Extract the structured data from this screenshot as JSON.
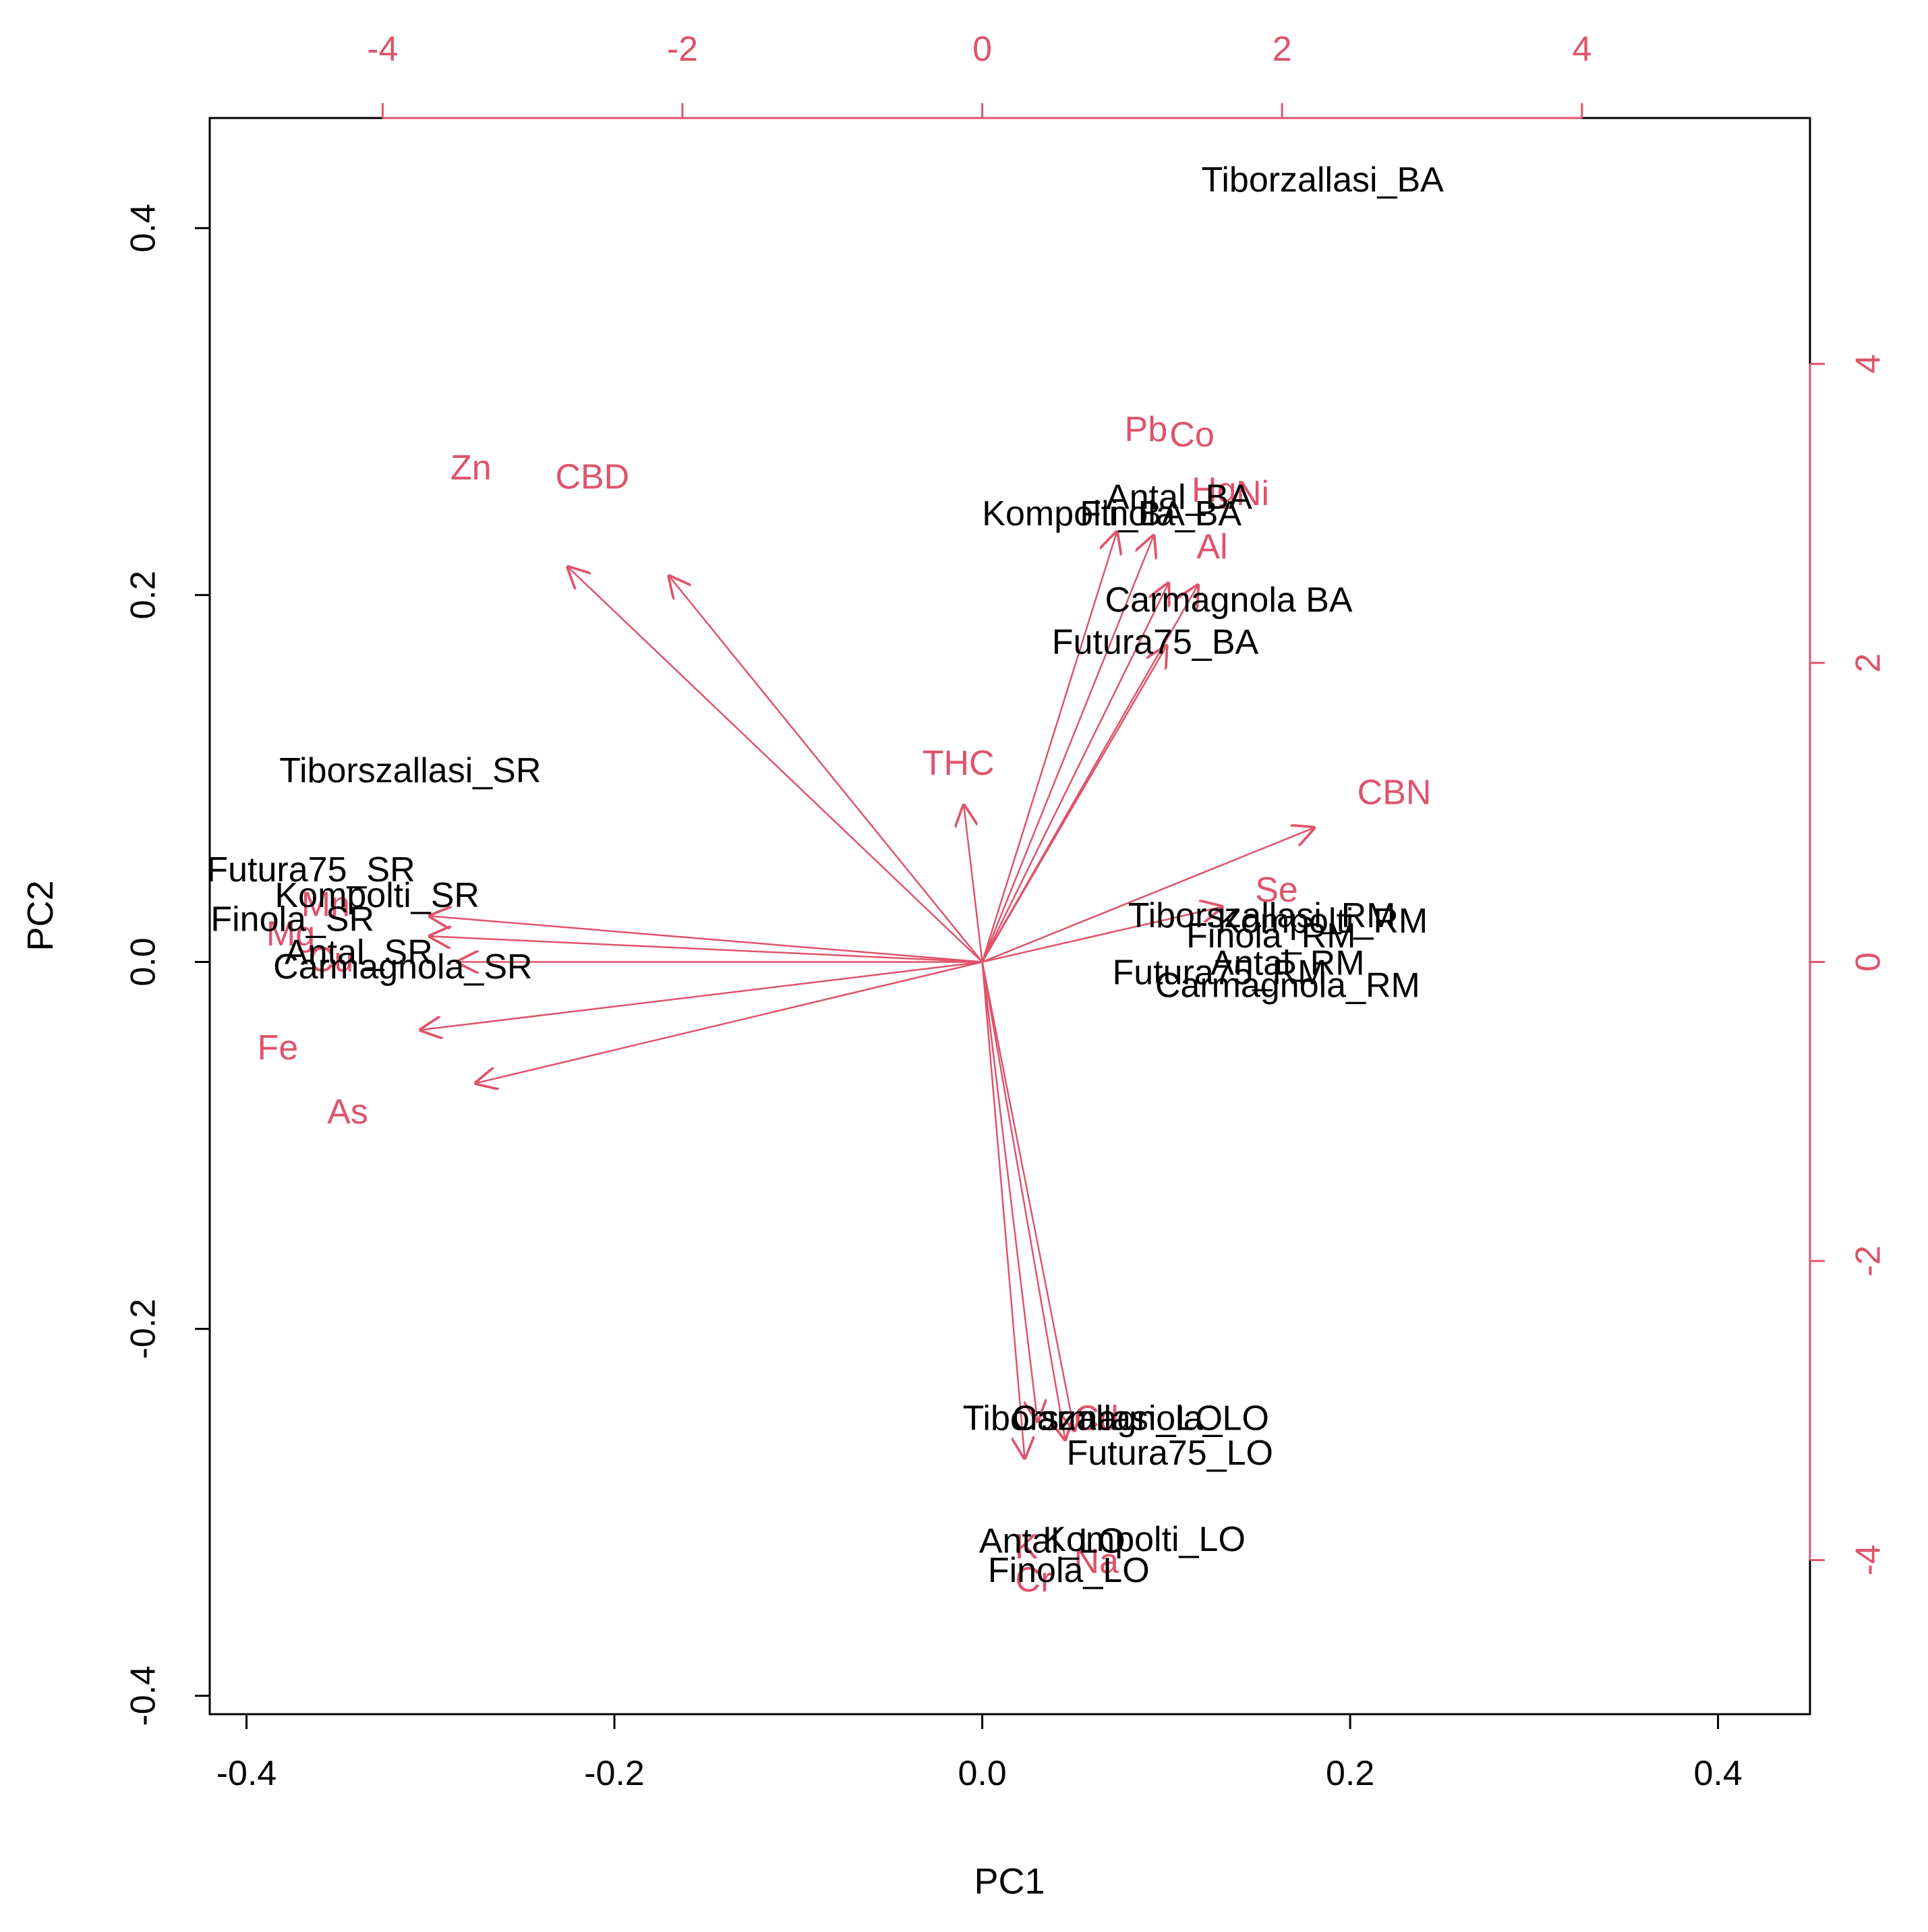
{
  "chart_data": {
    "type": "biplot",
    "title": "",
    "xlabel": "PC1",
    "ylabel": "PC2",
    "xlim": [
      -0.42,
      0.45
    ],
    "ylim": [
      -0.41,
      0.46
    ],
    "x_ticks": [
      -0.4,
      -0.2,
      0.0,
      0.2,
      0.4
    ],
    "x_tick_labels": [
      "-0.4",
      "-0.2",
      "0.0",
      "0.2",
      "0.4"
    ],
    "y_ticks": [
      -0.4,
      -0.2,
      0.0,
      0.2,
      0.4
    ],
    "y_tick_labels": [
      "-0.4",
      "-0.2",
      "0.0",
      "0.2",
      "0.4"
    ],
    "top_ticks": [
      -4,
      -2,
      0,
      2,
      4
    ],
    "top_tick_labels": [
      "-4",
      "-2",
      "0",
      "2",
      "4"
    ],
    "right_ticks": [
      -4,
      -2,
      0,
      2,
      4
    ],
    "right_tick_labels": [
      "-4",
      "-2",
      "0",
      "2",
      "4"
    ],
    "loading_scale": 12.27,
    "colors": {
      "axis": "#000000",
      "variables": "#DF536B",
      "observations": "#000000"
    },
    "observations": [
      {
        "label": "Tiborzallasi_BA",
        "x": 0.185,
        "y": 0.425
      },
      {
        "label": "Antal_BA",
        "x": 0.107,
        "y": 0.252
      },
      {
        "label": "Finola_BA",
        "x": 0.097,
        "y": 0.243
      },
      {
        "label": "Kompolti_BA",
        "x": 0.055,
        "y": 0.243
      },
      {
        "label": "Carmagnola BA",
        "x": 0.134,
        "y": 0.196
      },
      {
        "label": "Futura75_BA",
        "x": 0.094,
        "y": 0.173
      },
      {
        "label": "Tiborszallasi_SR",
        "x": -0.311,
        "y": 0.103
      },
      {
        "label": "Futura75_SR",
        "x": -0.365,
        "y": 0.049
      },
      {
        "label": "Kompolti_SR",
        "x": -0.329,
        "y": 0.035
      },
      {
        "label": "Finola_SR",
        "x": -0.375,
        "y": 0.022
      },
      {
        "label": "Antal_SR",
        "x": -0.339,
        "y": 0.004
      },
      {
        "label": "Carmagnola_SR",
        "x": -0.315,
        "y": -0.004
      },
      {
        "label": "Tiborszallasi_RM",
        "x": 0.152,
        "y": 0.024
      },
      {
        "label": "Kompolti_RM",
        "x": 0.185,
        "y": 0.021
      },
      {
        "label": "Finola_RM",
        "x": 0.157,
        "y": 0.013
      },
      {
        "label": "Antal_RM",
        "x": 0.166,
        "y": -0.002
      },
      {
        "label": "Futura75_RM",
        "x": 0.129,
        "y": -0.007
      },
      {
        "label": "Carmagnola_RM",
        "x": 0.166,
        "y": -0.014
      },
      {
        "label": "Tiborszallasi_LO",
        "x": 0.06,
        "y": -0.25
      },
      {
        "label": "Carmagnola_LO",
        "x": 0.086,
        "y": -0.25
      },
      {
        "label": "Futura75_LO",
        "x": 0.102,
        "y": -0.269
      },
      {
        "label": "Antal_LO",
        "x": 0.038,
        "y": -0.317
      },
      {
        "label": "Kompolti_LO",
        "x": 0.088,
        "y": -0.316
      },
      {
        "label": "Finola_LO",
        "x": 0.047,
        "y": -0.333
      }
    ],
    "loadings": [
      {
        "label": "Zn",
        "x": -0.225,
        "y": 0.215,
        "lx": -0.278,
        "ly": 0.268
      },
      {
        "label": "CBD",
        "x": -0.17,
        "y": 0.21,
        "lx": -0.212,
        "ly": 0.263
      },
      {
        "label": "Pb",
        "x": 0.073,
        "y": 0.234,
        "lx": 0.089,
        "ly": 0.289
      },
      {
        "label": "Co",
        "x": 0.093,
        "y": 0.232,
        "lx": 0.114,
        "ly": 0.286
      },
      {
        "label": "Hg",
        "x": 0.101,
        "y": 0.206,
        "lx": 0.126,
        "ly": 0.256
      },
      {
        "label": "Ni",
        "x": 0.117,
        "y": 0.205,
        "lx": 0.147,
        "ly": 0.254
      },
      {
        "label": "Al",
        "x": 0.1,
        "y": 0.172,
        "lx": 0.125,
        "ly": 0.225
      },
      {
        "label": "THC",
        "x": -0.01,
        "y": 0.085,
        "lx": -0.013,
        "ly": 0.107
      },
      {
        "label": "CBN",
        "x": 0.18,
        "y": 0.073,
        "lx": 0.224,
        "ly": 0.091
      },
      {
        "label": "Se",
        "x": 0.13,
        "y": 0.03,
        "lx": 0.16,
        "ly": 0.038
      },
      {
        "label": "Mn",
        "x": -0.3,
        "y": 0.025,
        "lx": -0.357,
        "ly": 0.03
      },
      {
        "label": "Mg",
        "x": -0.3,
        "y": 0.014,
        "lx": -0.376,
        "ly": 0.014
      },
      {
        "label": "Cu",
        "x": -0.285,
        "y": 0.0,
        "lx": -0.354,
        "ly": 0.0
      },
      {
        "label": "Fe",
        "x": -0.305,
        "y": -0.037,
        "lx": -0.383,
        "ly": -0.048
      },
      {
        "label": "As",
        "x": -0.275,
        "y": -0.066,
        "lx": -0.345,
        "ly": -0.083
      },
      {
        "label": "Cd",
        "x": 0.05,
        "y": -0.255,
        "lx": 0.062,
        "ly": -0.25
      },
      {
        "label": "K",
        "x": 0.023,
        "y": -0.27,
        "lx": 0.024,
        "ly": -0.32
      },
      {
        "label": "Na",
        "x": 0.045,
        "y": -0.26,
        "lx": 0.062,
        "ly": -0.328
      },
      {
        "label": "Cr",
        "x": 0.03,
        "y": -0.25,
        "lx": 0.028,
        "ly": -0.338
      }
    ]
  }
}
